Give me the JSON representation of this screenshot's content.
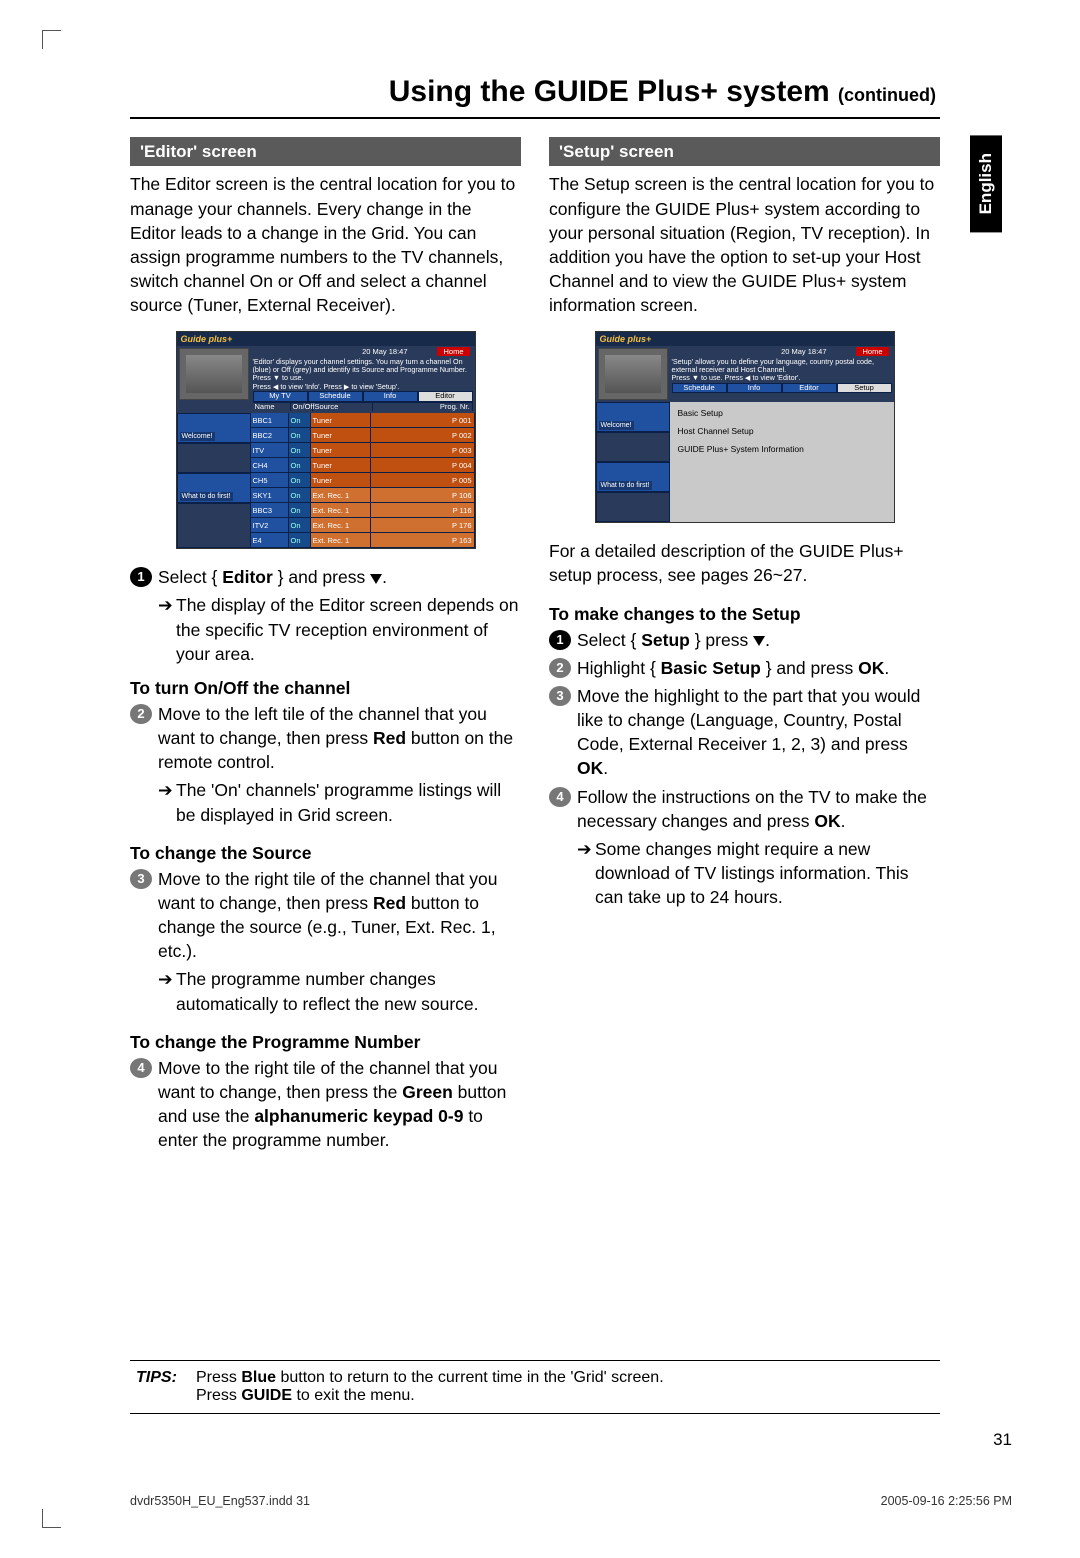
{
  "title_main": "Using the GUIDE Plus+ system ",
  "title_cont": "(continued)",
  "lang_tab": "English",
  "editor": {
    "bar": "'Editor' screen",
    "intro": "The Editor screen is the central location for you to manage your channels. Every change in the Editor leads to a change in the Grid. You can assign programme numbers to the TV channels, switch channel On or Off and select a channel source (Tuner, External Receiver).",
    "step1_a": "Select { ",
    "step1_b": "Editor",
    "step1_c": " } and press ",
    "step1_res": "The display of the Editor screen depends on the specific TV reception environment of your area.",
    "h_onoff": "To turn On/Off the channel",
    "step2_a": "Move to the left tile of the channel that you want to change, then press ",
    "step2_b": "Red",
    "step2_c": " button on the remote control.",
    "step2_res": "The 'On' channels' programme listings will be displayed in Grid screen.",
    "h_src": "To change the Source",
    "step3_a": "Move to the right tile of the channel that you want to change, then press ",
    "step3_b": "Red",
    "step3_c": " button to change the source (e.g., Tuner, Ext. Rec. 1, etc.).",
    "step3_res": "The programme number changes automatically to reflect the new source.",
    "h_prog": "To change the Programme Number",
    "step4_a": "Move to the right tile of the channel that you want to change, then press the ",
    "step4_b": "Green",
    "step4_c": " button and use the ",
    "step4_d": "alphanumeric keypad 0-9",
    "step4_e": " to enter the programme number."
  },
  "setup": {
    "bar": "'Setup' screen",
    "intro": "The Setup screen is the central location for you to configure the GUIDE Plus+ system according to your personal situation (Region, TV reception). In addition you have the option to set-up your Host Channel and to view the GUIDE Plus+ system information screen.",
    "detail": "For a detailed description of the GUIDE Plus+ setup process, see pages 26~27.",
    "h_changes": "To make changes to the Setup",
    "s1_a": "Select { ",
    "s1_b": "Setup",
    "s1_c": " } press ",
    "s2_a": "Highlight { ",
    "s2_b": "Basic Setup",
    "s2_c": " } and press ",
    "s2_d": "OK",
    "s3_a": "Move the highlight to the part that you would like to change (Language, Country, Postal Code, External Receiver 1, 2, 3) and press ",
    "s3_b": "OK",
    "s4_a": "Follow the instructions on the TV to make the necessary changes and press ",
    "s4_b": "OK",
    "s4_res": "Some changes might require a new download of TV listings information. This can take up to 24 hours."
  },
  "tv_editor": {
    "logo": "Guide plus+",
    "date": "20 May   18:47",
    "home": "Home",
    "desc1": "'Editor' displays your channel settings. You may turn a channel On (blue) or Off (grey) and identify its Source and Programme Number.  Press ▼ to use.",
    "desc2": "Press ◀ to view 'Info'.  Press ▶ to view 'Setup'.",
    "tabs": [
      "My TV",
      "Schedule",
      "Info",
      "Editor"
    ],
    "hdr": [
      "Name",
      "On/Off",
      "Source",
      "Prog. Nr."
    ],
    "side": [
      "Welcome!",
      "",
      "What to do first!",
      ""
    ],
    "rows": [
      {
        "n": "BBC1",
        "o": "On",
        "s": "Tuner",
        "p": "P 001",
        "ext": false
      },
      {
        "n": "BBC2",
        "o": "On",
        "s": "Tuner",
        "p": "P 002",
        "ext": false
      },
      {
        "n": "ITV",
        "o": "On",
        "s": "Tuner",
        "p": "P 003",
        "ext": false
      },
      {
        "n": "CH4",
        "o": "On",
        "s": "Tuner",
        "p": "P 004",
        "ext": false
      },
      {
        "n": "CH5",
        "o": "On",
        "s": "Tuner",
        "p": "P 005",
        "ext": false
      },
      {
        "n": "SKY1",
        "o": "On",
        "s": "Ext. Rec. 1",
        "p": "P 106",
        "ext": true
      },
      {
        "n": "BBC3",
        "o": "On",
        "s": "Ext. Rec. 1",
        "p": "P 116",
        "ext": true
      },
      {
        "n": "ITV2",
        "o": "On",
        "s": "Ext. Rec. 1",
        "p": "P 176",
        "ext": true
      },
      {
        "n": "E4",
        "o": "On",
        "s": "Ext. Rec. 1",
        "p": "P 163",
        "ext": true
      }
    ]
  },
  "tv_setup": {
    "logo": "Guide plus+",
    "date": "20 May   18:47",
    "home": "Home",
    "desc1": "'Setup' allows you to define your language, country postal code, external receiver and Host Channel.",
    "desc2": "Press ▼ to use. Press ◀ to view 'Editor'.",
    "tabs": [
      "Schedule",
      "Info",
      "Editor",
      "Setup"
    ],
    "side": [
      "Welcome!",
      "",
      "What to do first!",
      ""
    ],
    "items": [
      "Basic Setup",
      "Host Channel Setup",
      "GUIDE Plus+ System Information"
    ]
  },
  "tips": {
    "label": "TIPS:",
    "l1_a": "Press ",
    "l1_b": "Blue",
    "l1_c": " button to return to the current time in the 'Grid' screen.",
    "l2_a": "Press ",
    "l2_b": "GUIDE",
    "l2_c": " to exit the menu."
  },
  "page_number": "31",
  "footer_left": "dvdr5350H_EU_Eng537.indd   31",
  "footer_right": "2005-09-16   2:25:56 PM"
}
